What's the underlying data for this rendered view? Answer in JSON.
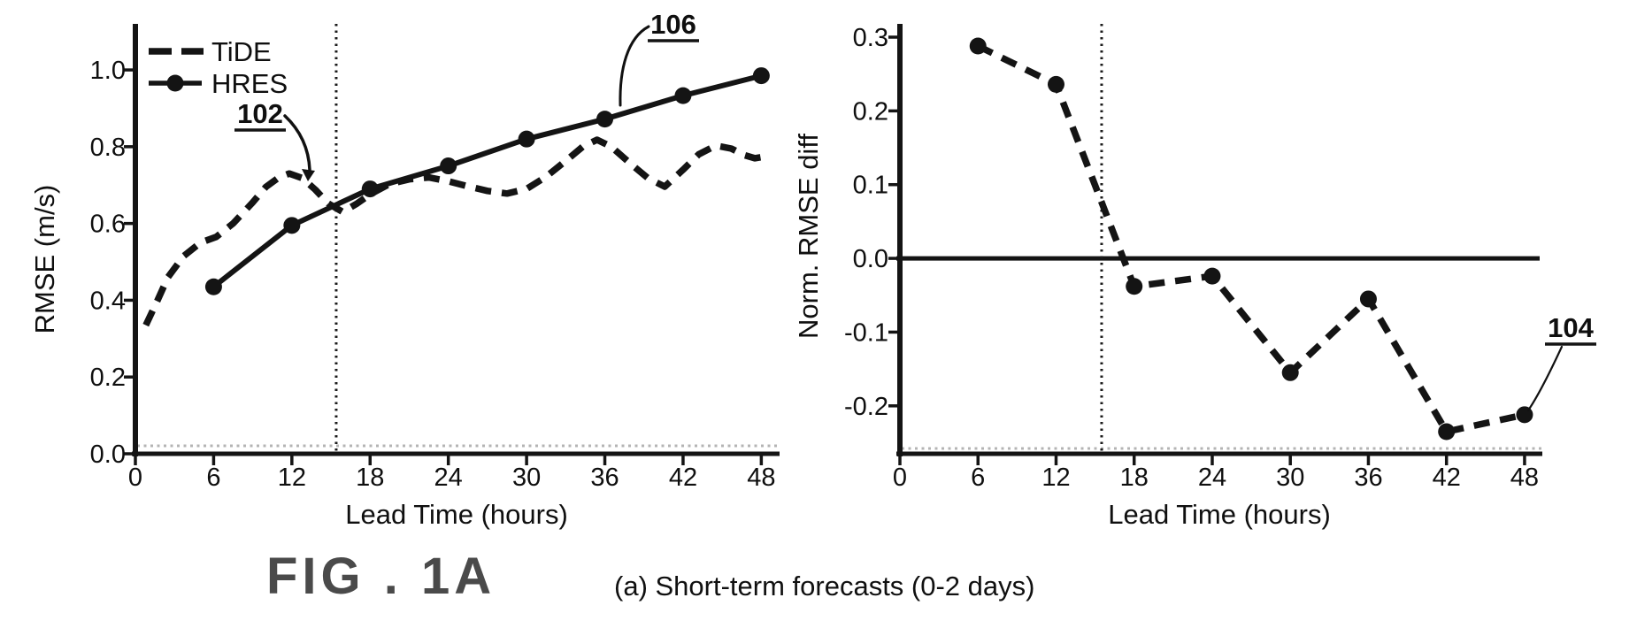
{
  "figure": {
    "fig_label": "FIG . 1A",
    "caption": "(a) Short-term forecasts (0-2 days)"
  },
  "colors": {
    "ink": "#141414",
    "light_dotted": "#b4b4b4",
    "fig_label_gray": "#4a4a4a"
  },
  "chart_data": [
    {
      "id": "rmse",
      "type": "line",
      "title": "",
      "xlabel": "Lead Time (hours)",
      "ylabel": "RMSE (m/s)",
      "xlim": [
        0,
        49.4
      ],
      "ylim": [
        0,
        1.12
      ],
      "xticks": [
        0,
        6,
        12,
        18,
        24,
        30,
        36,
        42,
        48
      ],
      "ytick_labels": [
        "0.0",
        "0.2",
        "0.4",
        "0.6",
        "0.8",
        "1.0"
      ],
      "grid": false,
      "legend_position": "upper-left",
      "vline_x": 15.4,
      "legend": [
        "TiDE",
        "HRES"
      ],
      "series": [
        {
          "name": "TiDE",
          "style": "dashed",
          "markers": false,
          "points": [
            [
              0.8,
              0.335
            ],
            [
              1.7,
              0.4
            ],
            [
              2.5,
              0.46
            ],
            [
              3.7,
              0.515
            ],
            [
              5,
              0.55
            ],
            [
              6.2,
              0.565
            ],
            [
              7.5,
              0.6
            ],
            [
              9,
              0.655
            ],
            [
              10,
              0.695
            ],
            [
              11,
              0.72
            ],
            [
              11.8,
              0.73
            ],
            [
              12.8,
              0.718
            ],
            [
              13.8,
              0.688
            ],
            [
              14.8,
              0.652
            ],
            [
              15.9,
              0.63
            ],
            [
              17,
              0.652
            ],
            [
              18,
              0.676
            ],
            [
              19.5,
              0.703
            ],
            [
              21,
              0.715
            ],
            [
              22.5,
              0.72
            ],
            [
              24,
              0.71
            ],
            [
              25.5,
              0.697
            ],
            [
              27,
              0.685
            ],
            [
              28.5,
              0.678
            ],
            [
              30,
              0.69
            ],
            [
              31.5,
              0.722
            ],
            [
              33,
              0.763
            ],
            [
              34.3,
              0.8
            ],
            [
              35.4,
              0.818
            ],
            [
              36.5,
              0.8
            ],
            [
              38,
              0.755
            ],
            [
              39.3,
              0.718
            ],
            [
              40.6,
              0.696
            ],
            [
              42,
              0.74
            ],
            [
              43.2,
              0.78
            ],
            [
              44.5,
              0.803
            ],
            [
              45.7,
              0.795
            ],
            [
              46.7,
              0.778
            ],
            [
              47.5,
              0.77
            ],
            [
              48.4,
              0.775
            ]
          ]
        },
        {
          "name": "HRES",
          "style": "solid",
          "markers": true,
          "points": [
            [
              6,
              0.435
            ],
            [
              12,
              0.595
            ],
            [
              18,
              0.69
            ],
            [
              24,
              0.75
            ],
            [
              30,
              0.82
            ],
            [
              36,
              0.872
            ],
            [
              42,
              0.933
            ],
            [
              48,
              0.985
            ]
          ]
        }
      ],
      "annotations": [
        {
          "label": "102",
          "target_series": "TiDE",
          "target": [
            13.3,
            0.717
          ]
        },
        {
          "label": "106",
          "target_series": "HRES",
          "target": [
            36.6,
            0.875
          ]
        }
      ]
    },
    {
      "id": "norm-rmse-diff",
      "type": "line",
      "title": "",
      "xlabel": "Lead Time (hours)",
      "ylabel": "Norm. RMSE diff",
      "xlim": [
        0,
        49.5
      ],
      "ylim": [
        -0.265,
        0.318
      ],
      "xticks": [
        0,
        6,
        12,
        18,
        24,
        30,
        36,
        42,
        48
      ],
      "ytick_labels": [
        "0.3",
        "0.2",
        "0.1",
        "0.0",
        "-0.1",
        "-0.2"
      ],
      "grid": false,
      "zero_line": true,
      "vline_x": 15.5,
      "series": [
        {
          "name": "Norm RMSE diff",
          "style": "dashed",
          "markers": true,
          "points": [
            [
              6,
              0.288
            ],
            [
              12,
              0.236
            ],
            [
              18,
              -0.038
            ],
            [
              24,
              -0.024
            ],
            [
              30,
              -0.155
            ],
            [
              36,
              -0.055
            ],
            [
              42,
              -0.235
            ],
            [
              48,
              -0.212
            ]
          ]
        }
      ],
      "annotations": [
        {
          "label": "104",
          "target_series": "Norm RMSE diff",
          "target": [
            48,
            -0.212
          ]
        }
      ]
    }
  ]
}
